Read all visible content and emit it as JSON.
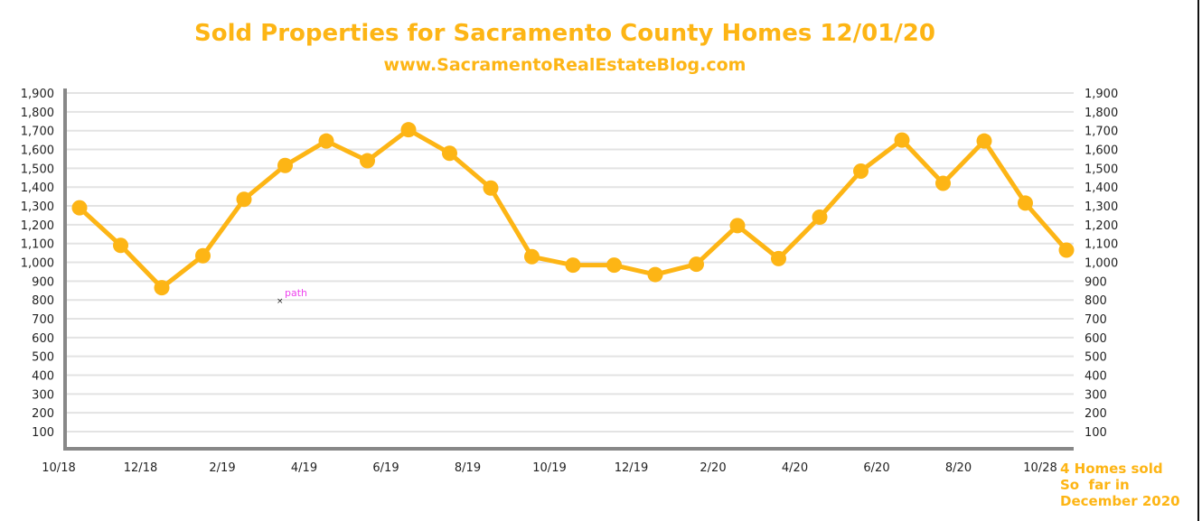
{
  "chart_data": {
    "type": "line",
    "title": "Sold Properties for Sacramento County Homes 12/01/20",
    "subtitle": "www.SacramentoRealEstateBlog.com",
    "xlabel": "",
    "ylabel": "",
    "ylim": [
      0,
      1900
    ],
    "yticks": [
      "100",
      "200",
      "300",
      "400",
      "500",
      "600",
      "700",
      "800",
      "900",
      "1,000",
      "1,100",
      "1,200",
      "1,300",
      "1,400",
      "1,500",
      "1,600",
      "1,700",
      "1,800",
      "1,900"
    ],
    "x_tick_labels": [
      "10/18",
      "12/18",
      "2/19",
      "4/19",
      "6/19",
      "8/19",
      "10/19",
      "12/19",
      "2/20",
      "4/20",
      "6/20",
      "8/20",
      "10/28"
    ],
    "series": [
      {
        "name": "Sold properties",
        "color": "#fdb515",
        "values": [
          1290,
          1090,
          865,
          1035,
          1335,
          1515,
          1645,
          1540,
          1705,
          1580,
          1395,
          1030,
          985,
          985,
          935,
          990,
          1195,
          1020,
          1240,
          1485,
          1650,
          1420,
          1645,
          1315,
          1065
        ]
      }
    ],
    "grid": true,
    "annotation": "4 Homes sold\nSo  far in\nDecember 2020",
    "marker_label": "path"
  }
}
